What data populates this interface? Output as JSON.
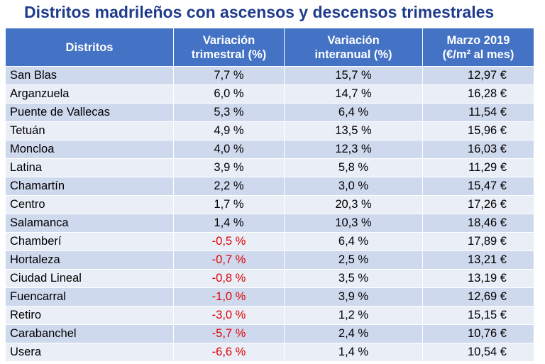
{
  "title": "Distritos madrileños con ascensos y descensos trimestrales",
  "header": {
    "distritos": "Distritos",
    "var_trim_line1": "Variación",
    "var_trim_line2": "trimestral (%)",
    "var_inter_line1": "Variación",
    "var_inter_line2": "interanual (%)",
    "precio_line1": "Marzo 2019",
    "precio_line2": "(€/m² al mes)"
  },
  "rows": [
    {
      "distrito": "San Blas",
      "trimestral": "7,7 %",
      "interanual": "15,7 %",
      "precio": "12,97 €",
      "negative": false
    },
    {
      "distrito": "Arganzuela",
      "trimestral": "6,0 %",
      "interanual": "14,7 %",
      "precio": "16,28 €",
      "negative": false
    },
    {
      "distrito": "Puente de Vallecas",
      "trimestral": "5,3 %",
      "interanual": "6,4 %",
      "precio": "11,54 €",
      "negative": false
    },
    {
      "distrito": "Tetuán",
      "trimestral": "4,9 %",
      "interanual": "13,5 %",
      "precio": "15,96 €",
      "negative": false
    },
    {
      "distrito": "Moncloa",
      "trimestral": "4,0 %",
      "interanual": "12,3 %",
      "precio": "16,03 €",
      "negative": false
    },
    {
      "distrito": "Latina",
      "trimestral": "3,9 %",
      "interanual": "5,8 %",
      "precio": "11,29 €",
      "negative": false
    },
    {
      "distrito": "Chamartín",
      "trimestral": "2,2 %",
      "interanual": "3,0 %",
      "precio": "15,47 €",
      "negative": false
    },
    {
      "distrito": "Centro",
      "trimestral": "1,7 %",
      "interanual": "20,3 %",
      "precio": "17,26 €",
      "negative": false
    },
    {
      "distrito": "Salamanca",
      "trimestral": "1,4 %",
      "interanual": "10,3 %",
      "precio": "18,46 €",
      "negative": false
    },
    {
      "distrito": "Chamberí",
      "trimestral": "-0,5 %",
      "interanual": "6,4 %",
      "precio": "17,89 €",
      "negative": true
    },
    {
      "distrito": "Hortaleza",
      "trimestral": "-0,7 %",
      "interanual": "2,5 %",
      "precio": "13,21 €",
      "negative": true
    },
    {
      "distrito": "Ciudad Lineal",
      "trimestral": "-0,8 %",
      "interanual": "3,5 %",
      "precio": "13,19 €",
      "negative": true
    },
    {
      "distrito": "Fuencarral",
      "trimestral": "-1,0 %",
      "interanual": "3,9 %",
      "precio": "12,69 €",
      "negative": true
    },
    {
      "distrito": "Retiro",
      "trimestral": "-3,0 %",
      "interanual": "1,2 %",
      "precio": "15,15 €",
      "negative": true
    },
    {
      "distrito": "Carabanchel",
      "trimestral": "-5,7 %",
      "interanual": "2,4 %",
      "precio": "10,76 €",
      "negative": true
    },
    {
      "distrito": "Usera",
      "trimestral": "-6,6 %",
      "interanual": "1,4 %",
      "precio": "10,54 €",
      "negative": true
    }
  ],
  "colors": {
    "title": "#1f3b8c",
    "header_bg": "#4472c4",
    "row_odd": "#cfd9ee",
    "row_even": "#e9eef7",
    "negative_text": "#e00000"
  }
}
